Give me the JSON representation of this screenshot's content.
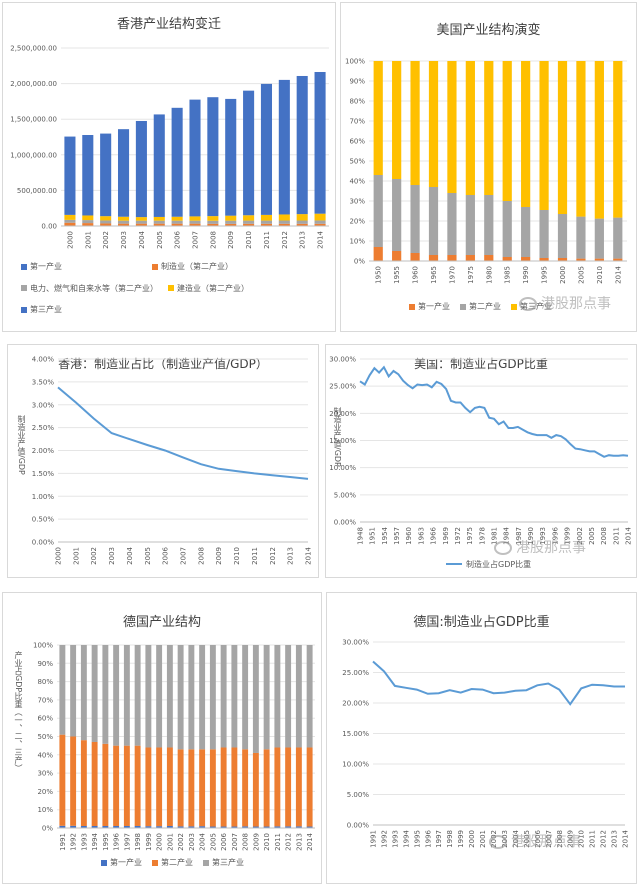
{
  "watermark_text": "港股那点事",
  "chart_data": [
    {
      "id": "hk",
      "type": "bar",
      "stacked": true,
      "title": "香港产业结构变迁",
      "categories": [
        "2000",
        "2001",
        "2002",
        "2003",
        "2004",
        "2005",
        "2006",
        "2007",
        "2008",
        "2009",
        "2010",
        "2011",
        "2012",
        "2013",
        "2014"
      ],
      "series": [
        {
          "name": "第一产业",
          "color": "#4472c4",
          "values": [
            1000,
            1000,
            1000,
            1000,
            1000,
            1000,
            1000,
            1000,
            1000,
            1000,
            1000,
            1000,
            1000,
            1000,
            1000
          ]
        },
        {
          "name": "制造业（第二产业）",
          "color": "#ed7d31",
          "values": [
            45000,
            40000,
            35000,
            32000,
            32000,
            32000,
            32000,
            32000,
            30000,
            29000,
            30000,
            30000,
            30000,
            30000,
            30000
          ]
        },
        {
          "name": "电力、燃气和自来水等（第二产业）",
          "color": "#a5a5a5",
          "values": [
            40000,
            42000,
            42000,
            42000,
            42000,
            42000,
            42000,
            42000,
            43000,
            45000,
            45000,
            45000,
            46000,
            46000,
            47000
          ]
        },
        {
          "name": "建造业（第二产业）",
          "color": "#ffc000",
          "values": [
            70000,
            65000,
            60000,
            55000,
            50000,
            52000,
            55000,
            60000,
            65000,
            70000,
            75000,
            80000,
            85000,
            90000,
            95000
          ]
        },
        {
          "name": "第三产业",
          "color": "#4472c4",
          "values": [
            1100000,
            1130000,
            1160000,
            1230000,
            1350000,
            1440000,
            1530000,
            1640000,
            1670000,
            1640000,
            1750000,
            1840000,
            1890000,
            1940000,
            1990000
          ]
        }
      ],
      "ylim": [
        0,
        2500000
      ],
      "yticks": [
        "0.00",
        "500,000.00",
        "1,000,000.00",
        "1,500,000.00",
        "2,000,000.00",
        "2,500,000.00"
      ],
      "ytick_values": [
        0,
        500000,
        1000000,
        1500000,
        2000000,
        2500000
      ],
      "legend": [
        "第一产业",
        "制造业（第二产业）",
        "电力、燃气和自来水等（第二产业）",
        "建造业（第二产业）",
        "第三产业"
      ]
    },
    {
      "id": "us",
      "type": "bar",
      "stacked": true,
      "percent": true,
      "title": "美国产业结构演变",
      "categories": [
        "1950",
        "1955",
        "1960",
        "1965",
        "1970",
        "1975",
        "1980",
        "1985",
        "1990",
        "1995",
        "2000",
        "2005",
        "2010",
        "2014"
      ],
      "series": [
        {
          "name": "第一产业",
          "color": "#ed7d31",
          "values": [
            7,
            5,
            4,
            3,
            3,
            3,
            3,
            2,
            2,
            1.5,
            1.5,
            1.2,
            1.2,
            1.2
          ]
        },
        {
          "name": "第二产业",
          "color": "#a5a5a5",
          "values": [
            36,
            36,
            34,
            34,
            31,
            30,
            30,
            28,
            25,
            24,
            22,
            21,
            20,
            20.5
          ]
        },
        {
          "name": "第三产业",
          "color": "#ffc000",
          "values": [
            57,
            59,
            62,
            63,
            66,
            67,
            67,
            70,
            73,
            74.5,
            76.5,
            77.8,
            78.8,
            78.3
          ]
        }
      ],
      "ylim": [
        0,
        100
      ],
      "yticks": [
        "0%",
        "10%",
        "20%",
        "30%",
        "40%",
        "50%",
        "60%",
        "70%",
        "80%",
        "90%",
        "100%"
      ],
      "legend": [
        "第一产业",
        "第二产业",
        "第三产业"
      ]
    },
    {
      "id": "hk_mfg",
      "type": "line",
      "title": "香港：制造业占比（制造业产值/GDP）",
      "x": [
        "2000",
        "2001",
        "2002",
        "2003",
        "2004",
        "2005",
        "2006",
        "2007",
        "2008",
        "2009",
        "2010",
        "2011",
        "2012",
        "2013",
        "2014"
      ],
      "series": [
        {
          "color": "#5b9bd5",
          "values": [
            3.38,
            3.05,
            2.7,
            2.38,
            2.25,
            2.12,
            2.0,
            1.85,
            1.7,
            1.6,
            1.55,
            1.5,
            1.46,
            1.42,
            1.38
          ]
        }
      ],
      "ylim": [
        0,
        4.0
      ],
      "yticks": [
        "0.00%",
        "0.50%",
        "1.00%",
        "1.50%",
        "2.00%",
        "2.50%",
        "3.00%",
        "3.50%",
        "4.00%"
      ],
      "ylabel": "制造业产值/GDP"
    },
    {
      "id": "us_mfg",
      "type": "line",
      "title": "美国：制造业占GDP比重",
      "xticks": [
        "1948",
        "1951",
        "1954",
        "1957",
        "1960",
        "1963",
        "1966",
        "1969",
        "1972",
        "1975",
        "1978",
        "1981",
        "1984",
        "1987",
        "1990",
        "1993",
        "1996",
        "1999",
        "2002",
        "2005",
        "2008",
        "2011",
        "2014"
      ],
      "x_start": 1948,
      "series": [
        {
          "name": "制造业占GDP比重",
          "color": "#5b9bd5",
          "values": [
            25.9,
            25.3,
            27.0,
            28.3,
            27.5,
            28.5,
            26.8,
            27.8,
            27.2,
            26.0,
            25.2,
            24.6,
            25.3,
            25.2,
            25.3,
            24.8,
            25.8,
            25.4,
            24.5,
            22.3,
            22.0,
            22.0,
            21.0,
            20.2,
            21.0,
            21.2,
            21.0,
            19.2,
            19.0,
            18.0,
            18.5,
            17.3,
            17.3,
            17.5,
            17.0,
            16.5,
            16.2,
            16.0,
            16.0,
            16.0,
            15.5,
            16.0,
            15.8,
            15.2,
            14.3,
            13.5,
            13.4,
            13.2,
            13.0,
            13.0,
            12.5,
            12.0,
            12.3,
            12.2,
            12.2,
            12.3,
            12.2
          ]
        }
      ],
      "ylim": [
        0,
        30
      ],
      "yticks": [
        "0.00%",
        "5.00%",
        "10.00%",
        "15.00%",
        "20.00%",
        "25.00%",
        "30.00%"
      ],
      "ylabel": "制造业产值/GDP",
      "legend": [
        "制造业占GDP比重"
      ]
    },
    {
      "id": "de",
      "type": "bar",
      "stacked": true,
      "percent": true,
      "title": "德国产业结构",
      "categories": [
        "1991",
        "1992",
        "1993",
        "1994",
        "1995",
        "1996",
        "1997",
        "1998",
        "1999",
        "2000",
        "2001",
        "2002",
        "2003",
        "2004",
        "2005",
        "2006",
        "2007",
        "2008",
        "2009",
        "2010",
        "2011",
        "2012",
        "2013",
        "2014"
      ],
      "series": [
        {
          "name": "第一产业",
          "color": "#4472c4",
          "values": [
            1.2,
            1.2,
            1.1,
            1.1,
            1.1,
            1.1,
            1.1,
            1.1,
            1.0,
            1.0,
            1.1,
            0.9,
            0.9,
            1.0,
            0.8,
            0.8,
            0.8,
            0.9,
            0.8,
            0.8,
            0.9,
            0.9,
            0.9,
            0.8
          ]
        },
        {
          "name": "第二产业",
          "color": "#ed7d31",
          "values": [
            49.8,
            48.8,
            46.9,
            45.9,
            44.9,
            43.9,
            43.9,
            43.9,
            43.0,
            43.0,
            42.9,
            42.1,
            42.1,
            42.0,
            42.2,
            43.2,
            43.2,
            42.1,
            40.2,
            42.2,
            43.1,
            43.1,
            43.1,
            43.2
          ]
        },
        {
          "name": "第三产业",
          "color": "#a5a5a5",
          "values": [
            49.0,
            50.0,
            52.0,
            53.0,
            54.0,
            55.0,
            55.0,
            55.0,
            56.0,
            56.0,
            56.0,
            57.0,
            57.0,
            57.0,
            57.0,
            56.0,
            56.0,
            57.0,
            59.0,
            57.0,
            56.0,
            56.0,
            56.0,
            56.0
          ]
        }
      ],
      "ylim": [
        0,
        100
      ],
      "yticks": [
        "0%",
        "10%",
        "20%",
        "30%",
        "40%",
        "50%",
        "60%",
        "70%",
        "80%",
        "90%",
        "100%"
      ],
      "ylabel": "产业占GDP比重（一、二、三产）",
      "legend": [
        "第一产业",
        "第二产业",
        "第三产业"
      ]
    },
    {
      "id": "de_mfg",
      "type": "line",
      "title": "德国:制造业占GDP比重",
      "x": [
        "1991",
        "1992",
        "1993",
        "1994",
        "1995",
        "1996",
        "1997",
        "1998",
        "1999",
        "2000",
        "2001",
        "2002",
        "2003",
        "2004",
        "2005",
        "2006",
        "2007",
        "2008",
        "2009",
        "2010",
        "2011",
        "2012",
        "2013",
        "2014"
      ],
      "series": [
        {
          "color": "#5b9bd5",
          "values": [
            26.8,
            25.2,
            22.8,
            22.5,
            22.2,
            21.5,
            21.6,
            22.1,
            21.7,
            22.3,
            22.2,
            21.6,
            21.7,
            22.0,
            22.1,
            22.9,
            23.2,
            22.2,
            19.8,
            22.4,
            23.0,
            22.9,
            22.7,
            22.7
          ]
        }
      ],
      "ylim": [
        0,
        30
      ],
      "yticks": [
        "0.00%",
        "5.00%",
        "10.00%",
        "15.00%",
        "20.00%",
        "25.00%",
        "30.00%"
      ]
    }
  ]
}
